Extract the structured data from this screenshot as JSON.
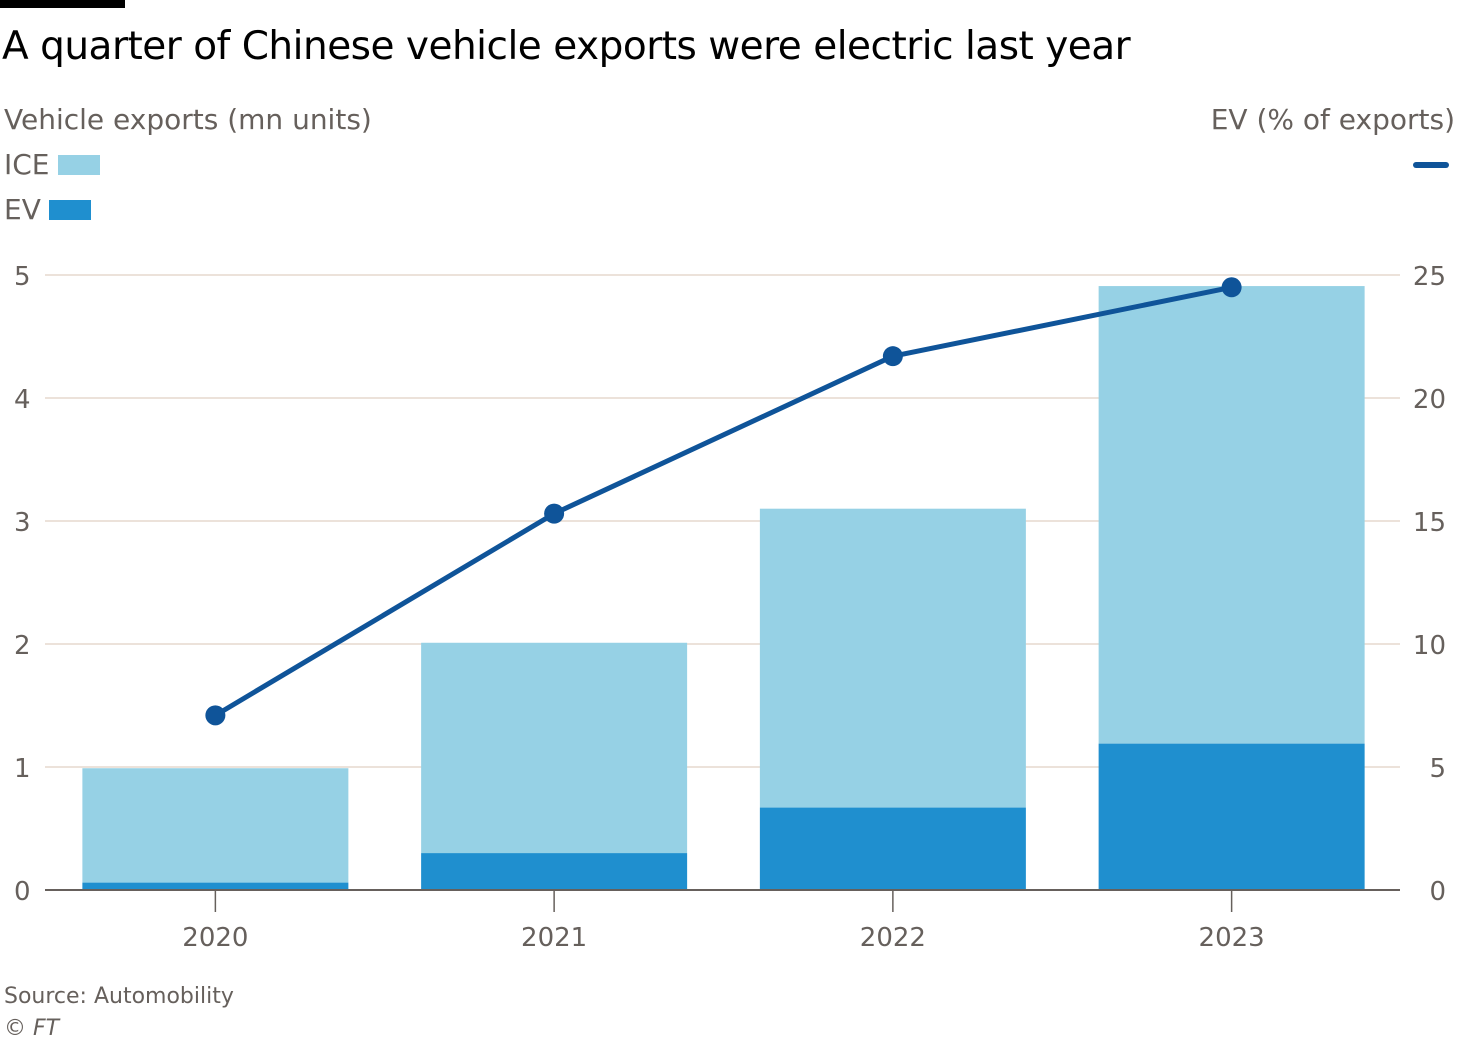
{
  "title": "A quarter of Chinese vehicle exports were electric last year",
  "left_axis_label": "Vehicle exports (mn units)",
  "right_axis_label": "EV (% of exports)",
  "legend": [
    {
      "label": "ICE",
      "color": "#96d1e5"
    },
    {
      "label": "EV",
      "color": "#1f8fcf"
    }
  ],
  "line_color": "#0f5499",
  "source": "Source: Automobility",
  "copyright": "© FT",
  "chart_data": {
    "type": "bar",
    "stacked": true,
    "categories": [
      "2020",
      "2021",
      "2022",
      "2023"
    ],
    "series": [
      {
        "name": "EV",
        "axis": "left",
        "values": [
          0.06,
          0.3,
          0.67,
          1.19
        ]
      },
      {
        "name": "ICE",
        "axis": "left",
        "values": [
          0.93,
          1.71,
          2.43,
          3.72
        ]
      }
    ],
    "line_series": {
      "name": "EV (% of exports)",
      "axis": "right",
      "type": "line",
      "values": [
        7.1,
        15.3,
        21.7,
        24.5
      ]
    },
    "ylim_left": [
      0,
      5
    ],
    "yticks_left": [
      "0",
      "1",
      "2",
      "3",
      "4",
      "5"
    ],
    "ylim_right": [
      0,
      25
    ],
    "yticks_right": [
      "0",
      "5",
      "10",
      "15",
      "20",
      "25"
    ],
    "grid": true
  }
}
